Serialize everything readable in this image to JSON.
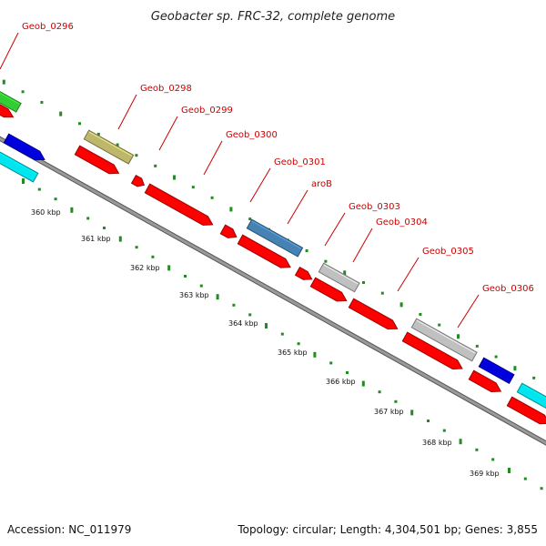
{
  "title": "Geobacter sp. FRC-32, complete genome",
  "footer": {
    "accession": "Accession: NC_011979",
    "summary": "Topology: circular; Length: 4,304,501 bp; Genes: 3,855"
  },
  "colors": {
    "cds": "#ff0000",
    "gene_label": "#cc0000",
    "backbone": "#888888",
    "gc_tick": "#228b22",
    "green": "#33cc33",
    "olive": "#bdb76b",
    "blue": "#0000dd",
    "cyan": "#00e5ee",
    "steelblue": "#4682b4",
    "grey": "#c0c0c0"
  },
  "gene_labels": [
    "Geob_0296",
    "Geob_0298",
    "Geob_0299",
    "Geob_0300",
    "Geob_0301",
    "aroB",
    "Geob_0303",
    "Geob_0304",
    "Geob_0305",
    "Geob_0306"
  ],
  "scale_labels": [
    "360 kbp",
    "361 kbp",
    "362 kbp",
    "363 kbp",
    "364 kbp",
    "365 kbp",
    "366 kbp",
    "367 kbp",
    "368 kbp",
    "369 kbp"
  ]
}
